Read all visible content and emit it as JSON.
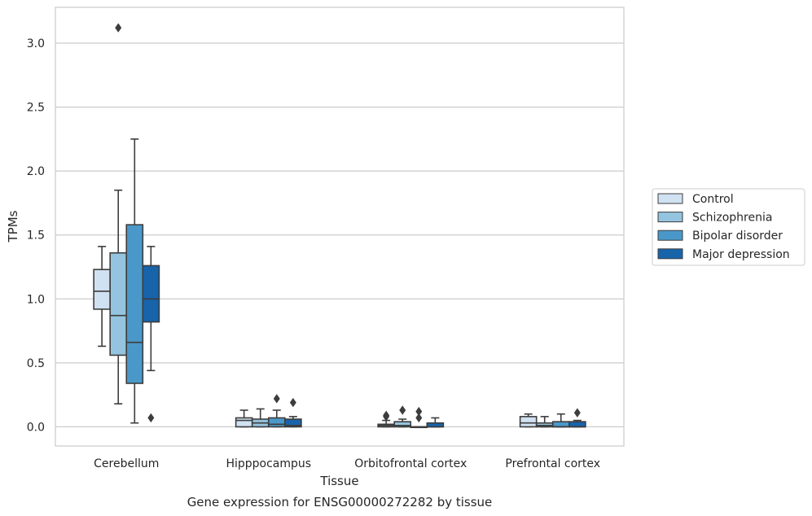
{
  "chart_data": {
    "type": "boxplot",
    "title": "",
    "caption": "Gene expression for ENSG00000272282 by tissue",
    "xlabel": "Tissue",
    "ylabel": "TPMs",
    "ylim": [
      -0.15,
      3.28
    ],
    "yticks": [
      "0.0",
      "0.5",
      "1.0",
      "1.5",
      "2.0",
      "2.5",
      "3.0"
    ],
    "ytick_values": [
      0.0,
      0.5,
      1.0,
      1.5,
      2.0,
      2.5,
      3.0
    ],
    "grid": "horizontal",
    "legend_position": "right",
    "categories": [
      "Cerebellum",
      "Hipppocampus",
      "Orbitofrontal cortex",
      "Prefrontal cortex"
    ],
    "series": [
      {
        "name": "Control",
        "color": "#d0e1f2",
        "boxes": [
          {
            "whisker_low": 0.63,
            "q1": 0.92,
            "median": 1.06,
            "q3": 1.23,
            "whisker_high": 1.41,
            "outliers": []
          },
          {
            "whisker_low": 0.0,
            "q1": 0.0,
            "median": 0.05,
            "q3": 0.07,
            "whisker_high": 0.13,
            "outliers": []
          },
          {
            "whisker_low": 0.0,
            "q1": 0.0,
            "median": 0.01,
            "q3": 0.02,
            "whisker_high": 0.05,
            "outliers": [
              0.08,
              0.09
            ]
          },
          {
            "whisker_low": 0.0,
            "q1": 0.0,
            "median": 0.03,
            "q3": 0.08,
            "whisker_high": 0.1,
            "outliers": []
          }
        ]
      },
      {
        "name": "Schizophrenia",
        "color": "#94c4df",
        "boxes": [
          {
            "whisker_low": 0.18,
            "q1": 0.56,
            "median": 0.87,
            "q3": 1.36,
            "whisker_high": 1.85,
            "outliers": [
              3.12
            ]
          },
          {
            "whisker_low": 0.0,
            "q1": 0.0,
            "median": 0.03,
            "q3": 0.06,
            "whisker_high": 0.14,
            "outliers": []
          },
          {
            "whisker_low": 0.0,
            "q1": 0.0,
            "median": 0.01,
            "q3": 0.04,
            "whisker_high": 0.06,
            "outliers": [
              0.13
            ]
          },
          {
            "whisker_low": 0.0,
            "q1": 0.0,
            "median": 0.01,
            "q3": 0.03,
            "whisker_high": 0.08,
            "outliers": []
          }
        ]
      },
      {
        "name": "Bipolar disorder",
        "color": "#4a98c9",
        "boxes": [
          {
            "whisker_low": 0.03,
            "q1": 0.34,
            "median": 0.66,
            "q3": 1.58,
            "whisker_high": 2.25,
            "outliers": []
          },
          {
            "whisker_low": 0.0,
            "q1": 0.0,
            "median": 0.02,
            "q3": 0.07,
            "whisker_high": 0.13,
            "outliers": [
              0.22
            ]
          },
          {
            "whisker_low": 0.0,
            "q1": 0.0,
            "median": 0.0,
            "q3": 0.0,
            "whisker_high": 0.0,
            "outliers": [
              0.07,
              0.12
            ]
          },
          {
            "whisker_low": 0.0,
            "q1": 0.0,
            "median": 0.0,
            "q3": 0.04,
            "whisker_high": 0.1,
            "outliers": []
          }
        ]
      },
      {
        "name": "Major depression",
        "color": "#1764ab",
        "boxes": [
          {
            "whisker_low": 0.44,
            "q1": 0.82,
            "median": 1.0,
            "q3": 1.26,
            "whisker_high": 1.41,
            "outliers": [
              0.07
            ]
          },
          {
            "whisker_low": 0.0,
            "q1": 0.0,
            "median": 0.01,
            "q3": 0.06,
            "whisker_high": 0.08,
            "outliers": [
              0.19
            ]
          },
          {
            "whisker_low": 0.0,
            "q1": 0.0,
            "median": 0.0,
            "q3": 0.03,
            "whisker_high": 0.07,
            "outliers": []
          },
          {
            "whisker_low": 0.0,
            "q1": 0.0,
            "median": 0.0,
            "q3": 0.04,
            "whisker_high": 0.05,
            "outliers": [
              0.11
            ]
          }
        ]
      }
    ]
  }
}
